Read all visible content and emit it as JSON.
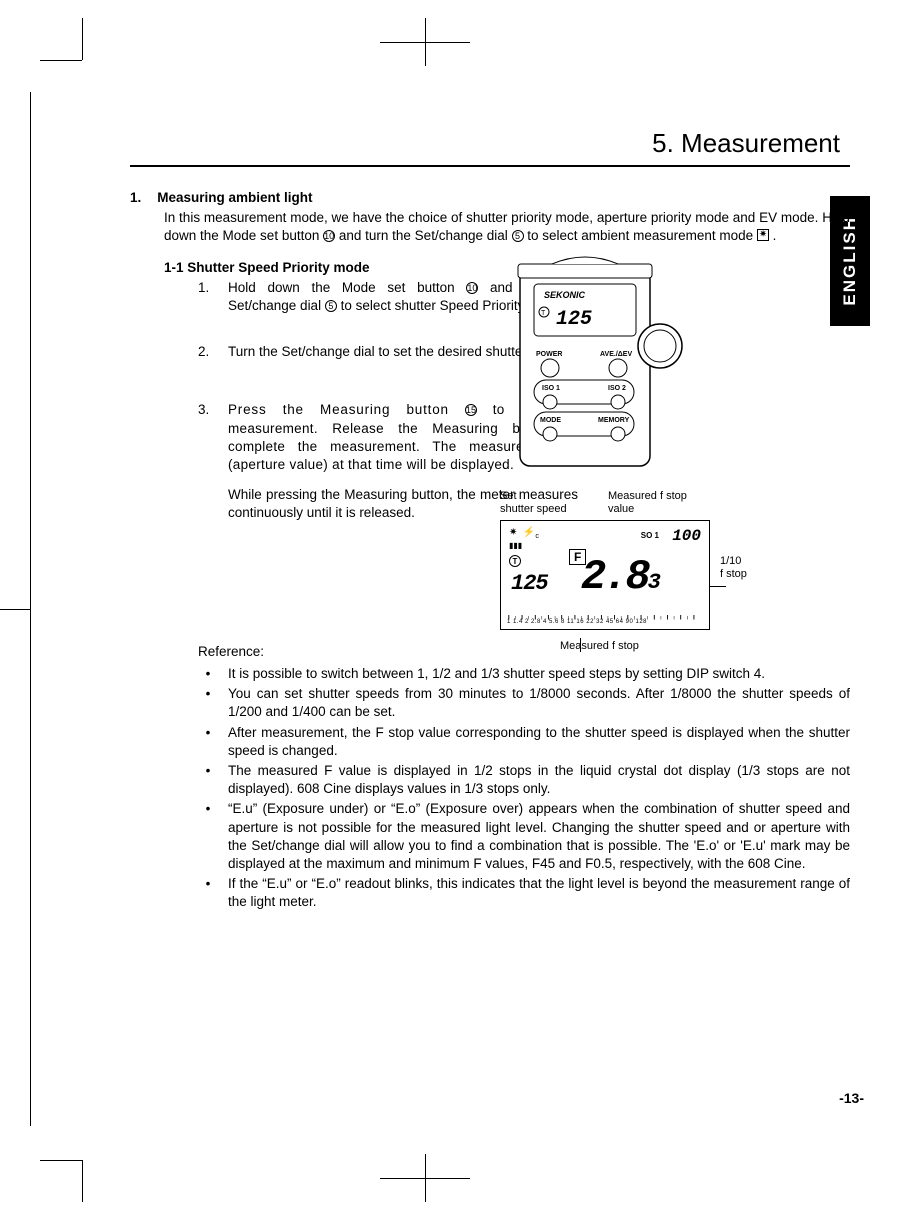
{
  "chapter_title": "5.  Measurement",
  "lang_tab": "ENGLISH",
  "section1": {
    "num": "1.",
    "title": "Measuring ambient light",
    "body_a": "In this measurement mode, we have the choice of shutter priority mode, aperture priority mode and EV mode. Hold down the Mode set button ",
    "body_b": " and turn the Set/change dial ",
    "body_c": " to select ambient measurement mode ",
    "body_d": " .",
    "btn10": "10",
    "dial5": "5"
  },
  "sub11": {
    "title": "1-1  Shutter Speed Priority mode",
    "step1": {
      "num": "1.",
      "text_a": "Hold down the Mode set button ",
      "text_b": " and turn the Set/change dial ",
      "text_c": " to select shutter Speed Priority mode.",
      "btn10": "10",
      "dial5": "5"
    },
    "step2": {
      "num": "2.",
      "text": "Turn the Set/change dial to set the desired shutter speed."
    },
    "step3": {
      "num": "3.",
      "text_a": "Press the Measuring button ",
      "text_b": " to make a measurement.  Release the Measuring button to complete the measurement.  The measured value (aperture value) at that time will be displayed.",
      "btn15": "15",
      "para2": "While pressing the Measuring button, the meter measures continuously until it is released."
    }
  },
  "device": {
    "brand": "SEKONIC",
    "display": "125",
    "labels": {
      "power": "POWER",
      "ave": "AVE./ΔEV",
      "iso1": "ISO 1",
      "iso2": "ISO 2",
      "mode": "MODE",
      "memory": "MEMORY"
    }
  },
  "lcd": {
    "top_labels": {
      "set_shutter": "Set\nshutter speed",
      "measured_fstop_value": "Measured f stop\nvalue"
    },
    "iso_label": "SO 1",
    "iso_value": "100",
    "big_f": "F",
    "T": "T",
    "shutter": "125",
    "f_main": "2.8",
    "f_tenth": "3",
    "scale_numbers": "1 1.4  2  2.8 4  5.6  8  11 16  22  32 45 64 90 128",
    "side_label": "1/10\nf stop",
    "bottom_label": "Measured f stop"
  },
  "reference": {
    "heading": "Reference:",
    "items": [
      "It is possible to switch between 1, 1/2 and 1/3 shutter speed steps by setting DIP switch 4.",
      "You can set shutter speeds from 30 minutes to 1/8000 seconds.  After 1/8000 the shutter speeds of 1/200 and 1/400 can be set.",
      "After measurement, the F stop value corresponding to the shutter speed is displayed when the shutter speed is changed.",
      "The measured F value is displayed in 1/2 stops in the liquid crystal dot display (1/3 stops are not displayed). 608 Cine displays values in 1/3 stops only.",
      "“E.u” (Exposure under) or “E.o” (Exposure over) appears when the combination of shutter speed and aperture is not possible for the measured light level. Changing the shutter speed and or aperture with the Set/change dial will allow you to find a combination that is possible. The 'E.o' or 'E.u' mark may be displayed at the maximum and minimum F values, F45 and F0.5, respectively, with the 608 Cine.",
      "If the “E.u” or “E.o” readout blinks, this indicates that the light level is beyond the measurement range of the light meter."
    ]
  },
  "page_number": "-13-"
}
